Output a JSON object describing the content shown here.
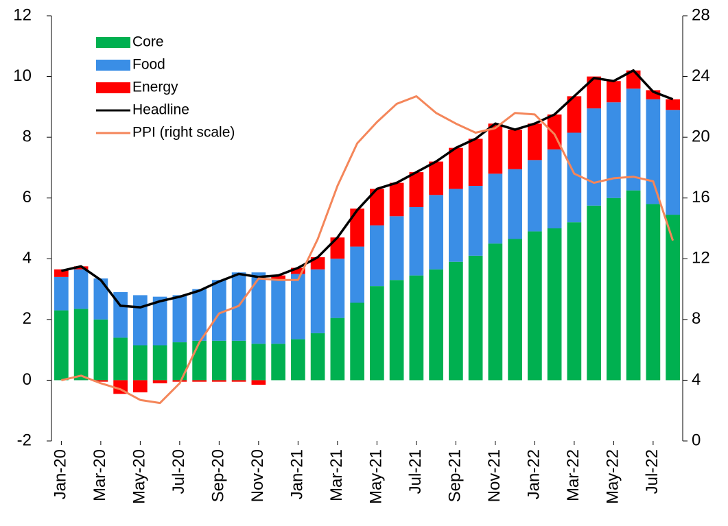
{
  "chart_data": {
    "type": "bar",
    "stacked": true,
    "categories": [
      "Jan-20",
      null,
      "Mar-20",
      null,
      "May-20",
      null,
      "Jul-20",
      null,
      "Sep-20",
      null,
      "Nov-20",
      null,
      "Jan-21",
      null,
      "Mar-21",
      null,
      "May-21",
      null,
      "Jul-21",
      null,
      "Sep-21",
      null,
      "Nov-21",
      null,
      "Jan-22",
      null,
      "Mar-22",
      null,
      "May-22",
      null,
      "Jul-22",
      null
    ],
    "series": [
      {
        "name": "Core",
        "type": "bar",
        "color": "#00b050",
        "values": [
          2.3,
          2.35,
          2.0,
          1.4,
          1.15,
          1.15,
          1.25,
          1.3,
          1.3,
          1.3,
          1.2,
          1.2,
          1.35,
          1.55,
          2.05,
          2.55,
          3.1,
          3.3,
          3.45,
          3.65,
          3.9,
          4.1,
          4.5,
          4.65,
          4.9,
          5.0,
          5.2,
          5.75,
          6.0,
          6.25,
          5.8,
          5.45
        ]
      },
      {
        "name": "Food",
        "type": "bar",
        "color": "#3a8ee6",
        "values": [
          1.1,
          1.3,
          1.35,
          1.5,
          1.65,
          1.6,
          1.55,
          1.7,
          2.0,
          2.25,
          2.35,
          2.1,
          2.15,
          2.1,
          1.95,
          1.85,
          2.0,
          2.1,
          2.25,
          2.45,
          2.4,
          2.3,
          2.3,
          2.3,
          2.35,
          2.6,
          2.95,
          3.2,
          3.15,
          3.35,
          3.45,
          3.45
        ]
      },
      {
        "name": "Energy",
        "type": "bar",
        "color": "#ff0000",
        "values": [
          0.25,
          0.1,
          -0.05,
          -0.45,
          -0.4,
          -0.1,
          -0.05,
          -0.05,
          -0.05,
          -0.05,
          -0.15,
          0.15,
          0.2,
          0.4,
          0.7,
          1.25,
          1.2,
          1.1,
          1.15,
          1.1,
          1.35,
          1.55,
          1.65,
          1.3,
          1.2,
          1.15,
          1.2,
          1.05,
          0.7,
          0.6,
          0.3,
          0.35
        ]
      },
      {
        "name": "Headline",
        "type": "line",
        "color": "#000000",
        "values": [
          3.6,
          3.75,
          3.3,
          2.45,
          2.4,
          2.6,
          2.75,
          2.95,
          3.25,
          3.5,
          3.4,
          3.45,
          3.7,
          4.05,
          4.7,
          5.6,
          6.3,
          6.5,
          6.85,
          7.2,
          7.65,
          7.95,
          8.45,
          8.25,
          8.45,
          8.75,
          9.35,
          9.95,
          9.85,
          10.2,
          9.5,
          9.25
        ]
      },
      {
        "name": "PPI (right scale)",
        "type": "line",
        "axis": "y2",
        "color": "#f4865a",
        "values": [
          4.0,
          4.3,
          3.8,
          3.4,
          2.7,
          2.5,
          3.8,
          6.5,
          8.4,
          8.9,
          10.7,
          10.6,
          10.6,
          13.3,
          16.8,
          19.6,
          21.0,
          22.2,
          22.7,
          21.6,
          20.9,
          20.3,
          20.6,
          21.6,
          21.5,
          20.2,
          17.6,
          17.0,
          17.3,
          17.4,
          17.1,
          13.2
        ]
      }
    ],
    "ylim": [
      -2,
      12
    ],
    "yticks": [
      -2,
      0,
      2,
      4,
      6,
      8,
      10,
      12
    ],
    "y2lim": [
      0,
      28
    ],
    "y2ticks": [
      0,
      4,
      8,
      12,
      16,
      20,
      24,
      28
    ],
    "legend": "upper-left"
  }
}
